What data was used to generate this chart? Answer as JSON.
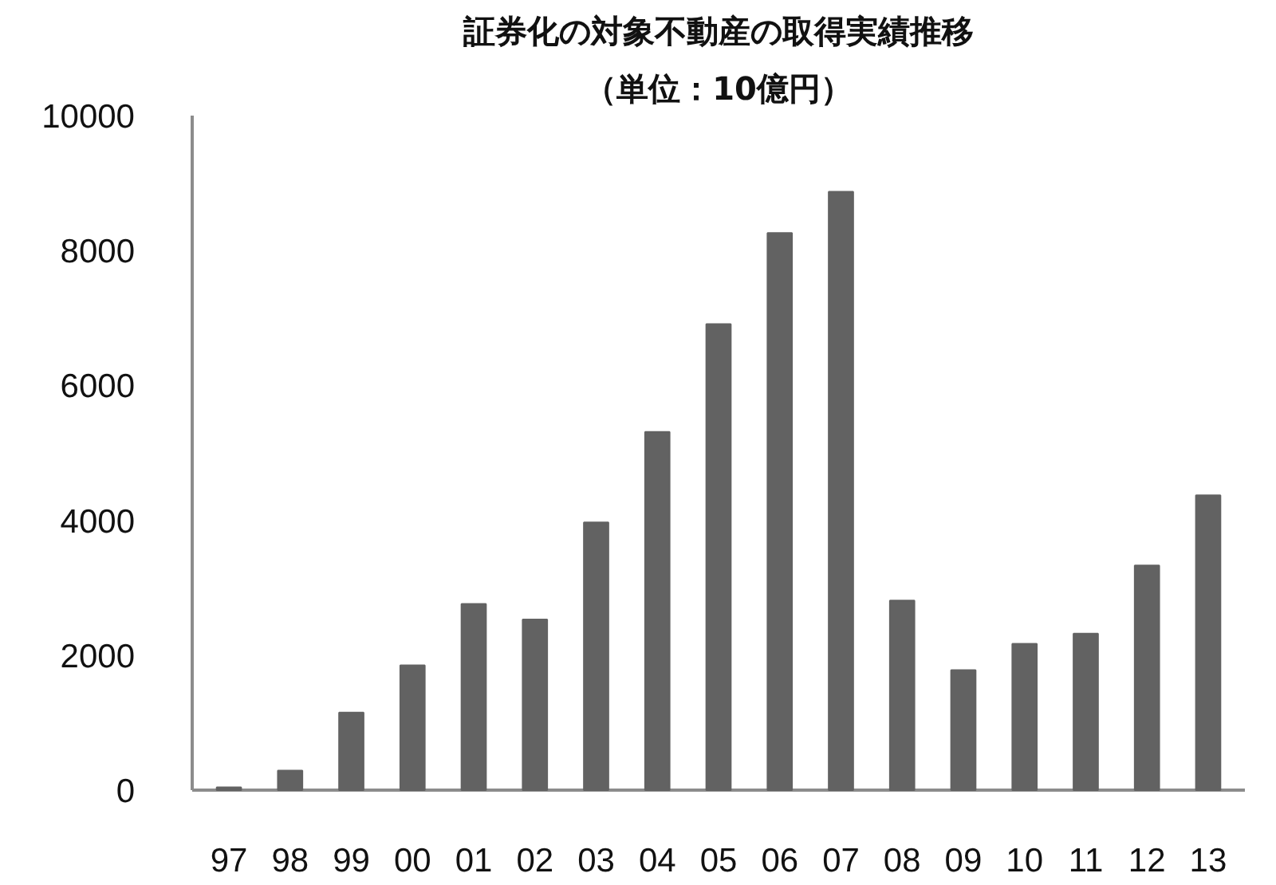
{
  "chart_data": {
    "type": "bar",
    "title": "証券化の対象不動産の取得実績推移",
    "subtitle": "（単位：10億円）",
    "categories": [
      "97",
      "98",
      "99",
      "00",
      "01",
      "02",
      "03",
      "04",
      "05",
      "06",
      "07",
      "08",
      "09",
      "10",
      "11",
      "12",
      "13"
    ],
    "values": [
      40,
      290,
      1150,
      1850,
      2760,
      2530,
      3970,
      5310,
      6910,
      8260,
      8870,
      2810,
      1780,
      2170,
      2320,
      3330,
      4370
    ],
    "color": "#626262",
    "ylim": [
      0,
      10000
    ],
    "yticks": [
      0,
      2000,
      4000,
      6000,
      8000,
      10000
    ],
    "grid": false
  }
}
